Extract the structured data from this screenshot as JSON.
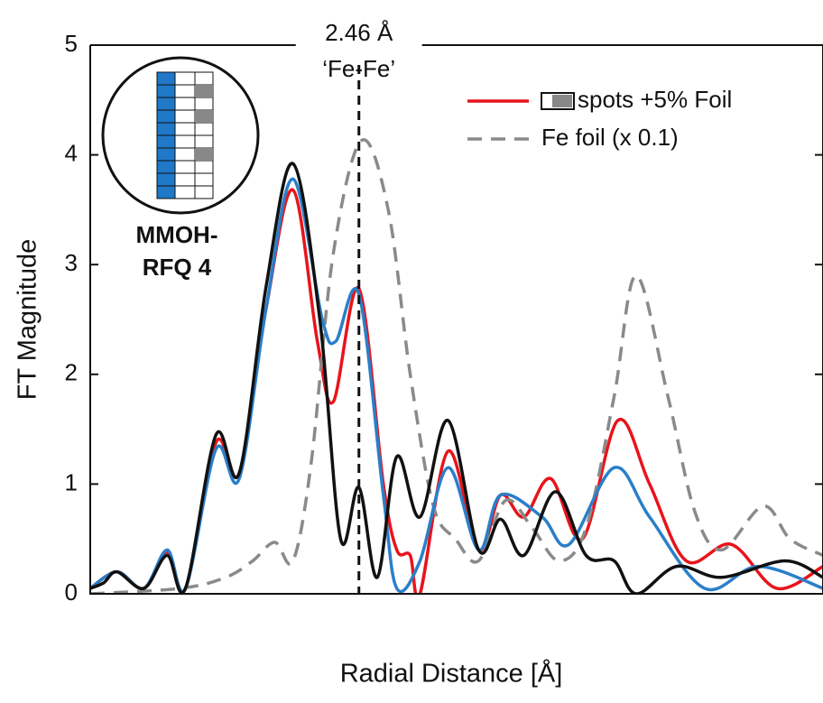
{
  "chart_data": {
    "type": "line",
    "xlabel": "Radial Distance [Å]",
    "ylabel": "FT Magnitude",
    "xlim": [
      0,
      6
    ],
    "ylim": [
      0,
      5
    ],
    "yticks": [
      0,
      1,
      2,
      3,
      4,
      5
    ],
    "legend": "upper right",
    "annotation": {
      "lines": [
        "2.46 Å",
        "‘Fe-Fe’"
      ],
      "x": 2.2
    },
    "inset_label": [
      "MMOH-",
      "RFQ 4"
    ],
    "series": [
      {
        "name": "spots +5% Foil",
        "color": "#e8141b",
        "dash": false,
        "x": [
          0,
          0.22,
          0.44,
          0.63,
          0.78,
          1.03,
          1.22,
          1.44,
          1.66,
          1.86,
          1.99,
          2.2,
          2.4,
          2.51,
          2.62,
          2.7,
          2.93,
          3.18,
          3.36,
          3.55,
          3.77,
          4.03,
          4.32,
          4.58,
          4.88,
          5.25,
          5.62,
          6.0
        ],
        "values": [
          0.05,
          0.2,
          0.05,
          0.38,
          0.05,
          1.38,
          1.1,
          2.6,
          3.68,
          2.3,
          1.75,
          2.78,
          1.0,
          0.4,
          0.35,
          0.0,
          1.3,
          0.4,
          0.9,
          0.7,
          1.05,
          0.5,
          1.58,
          1.0,
          0.3,
          0.45,
          0.05,
          0.25
        ]
      },
      {
        "name": "Fe foil (x 0.1)",
        "color": "#8a8a8a",
        "dash": true,
        "x": [
          0,
          0.74,
          1.11,
          1.33,
          1.51,
          1.66,
          1.81,
          1.99,
          2.22,
          2.44,
          2.62,
          2.81,
          2.99,
          3.18,
          3.4,
          3.62,
          3.84,
          4.06,
          4.29,
          4.47,
          4.73,
          4.95,
          5.17,
          5.51,
          5.73,
          6.0
        ],
        "values": [
          0.0,
          0.05,
          0.15,
          0.3,
          0.47,
          0.3,
          1.2,
          3.1,
          4.13,
          3.5,
          2.0,
          0.8,
          0.5,
          0.3,
          0.85,
          0.6,
          0.3,
          0.6,
          1.8,
          2.9,
          1.8,
          0.75,
          0.4,
          0.8,
          0.5,
          0.35
        ]
      },
      {
        "color": "#2a7fc9",
        "dash": false,
        "x": [
          0,
          0.22,
          0.44,
          0.63,
          0.78,
          1.03,
          1.22,
          1.44,
          1.66,
          1.9,
          2.01,
          2.2,
          2.4,
          2.51,
          2.7,
          2.93,
          3.18,
          3.36,
          3.7,
          3.92,
          4.29,
          4.58,
          5.03,
          5.47,
          6.0
        ],
        "values": [
          0.05,
          0.2,
          0.05,
          0.4,
          0.05,
          1.32,
          1.05,
          2.6,
          3.78,
          2.5,
          2.3,
          2.73,
          0.9,
          0.05,
          0.3,
          1.15,
          0.4,
          0.9,
          0.7,
          0.45,
          1.15,
          0.7,
          0.05,
          0.25,
          0.05
        ]
      },
      {
        "color": "#111111",
        "dash": false,
        "x": [
          0,
          0.11,
          0.22,
          0.44,
          0.63,
          0.78,
          1.03,
          1.22,
          1.44,
          1.66,
          1.88,
          2.05,
          2.2,
          2.35,
          2.51,
          2.7,
          2.93,
          3.18,
          3.36,
          3.55,
          3.81,
          4.06,
          4.29,
          4.47,
          4.8,
          5.17,
          5.69,
          6.0
        ],
        "values": [
          0.05,
          0.1,
          0.2,
          0.05,
          0.35,
          0.05,
          1.45,
          1.1,
          2.8,
          3.92,
          2.5,
          0.5,
          0.97,
          0.15,
          1.25,
          0.7,
          1.58,
          0.4,
          0.68,
          0.35,
          0.93,
          0.35,
          0.3,
          0.0,
          0.25,
          0.15,
          0.3,
          0.15
        ]
      }
    ]
  }
}
